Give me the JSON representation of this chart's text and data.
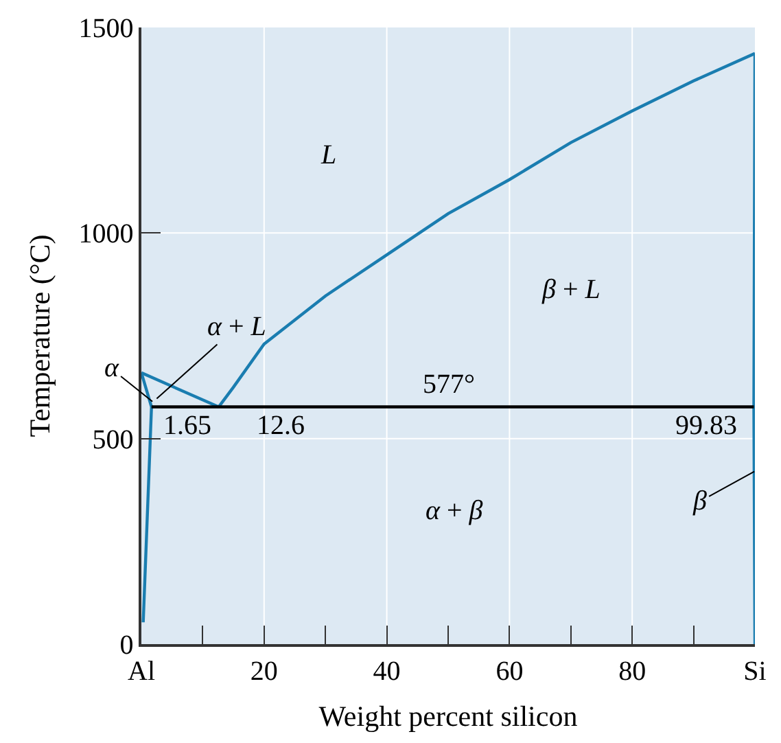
{
  "chart_data": {
    "type": "line",
    "xlabel": "Weight percent silicon",
    "ylabel": "Temperature (°C)",
    "series": [
      {
        "color": "#1a7db0",
        "x": [
          0,
          12.6
        ],
        "values": [
          660,
          577
        ]
      },
      {
        "color": "#1a7db0",
        "x": [
          12.6,
          15,
          20,
          30,
          40,
          50,
          60,
          70,
          80,
          90,
          100
        ],
        "values": [
          577,
          625,
          730,
          847,
          947,
          1047,
          1130,
          1220,
          1297,
          1370,
          1437
        ]
      },
      {
        "color": "#1a7db0",
        "x": [
          0,
          1.65,
          0.3
        ],
        "values": [
          660,
          577,
          53
        ]
      },
      {
        "color": "#1a7db0",
        "x": [
          100,
          99.83,
          100
        ],
        "values": [
          1437,
          577,
          0
        ]
      },
      {
        "color": "#000000",
        "x": [
          1.65,
          99.83
        ],
        "values": [
          577,
          577
        ]
      }
    ],
    "annotations": [
      "L",
      "β + L",
      {
        "text": "α + L",
        "x": 2.5,
        "y": 597
      },
      {
        "text": "α",
        "x": 1.8,
        "y": 590
      },
      "577°",
      "1.65",
      "12.6",
      "99.83",
      "α + β",
      {
        "text": "β",
        "x": 99.9,
        "y": 420
      }
    ],
    "xlim": [
      0,
      100
    ],
    "ylim": [
      0,
      1500
    ],
    "xticks": [
      {
        "value": 0,
        "label": "Al"
      },
      {
        "value": 10,
        "label": null
      },
      20,
      {
        "value": 30,
        "label": null
      },
      40,
      {
        "value": 50,
        "label": null
      },
      60,
      {
        "value": 70,
        "label": null
      },
      80,
      {
        "value": 90,
        "label": null
      },
      {
        "value": 100,
        "label": "Si"
      }
    ],
    "yticks": [
      0,
      500,
      1000,
      1500
    ],
    "grid": true,
    "marker": "none",
    "line_style": "solid"
  }
}
